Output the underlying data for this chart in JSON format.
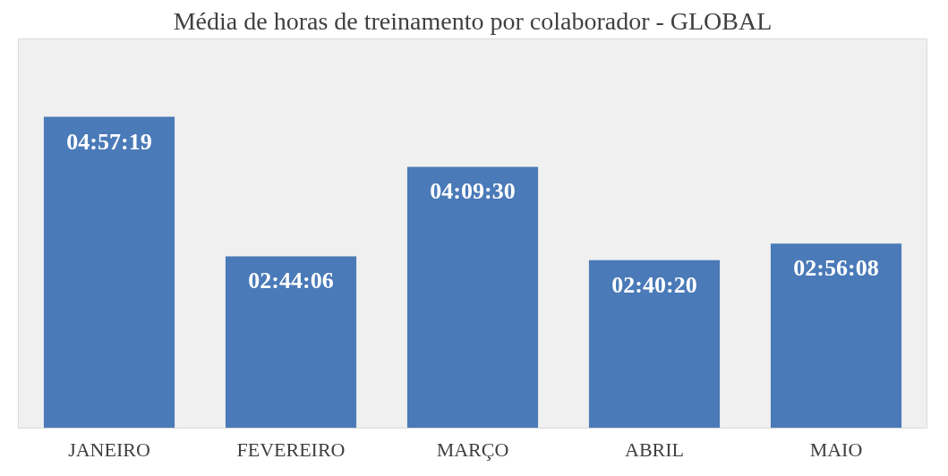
{
  "chart_data": {
    "type": "bar",
    "title": "Média de horas de treinamento por colaborador - GLOBAL",
    "categories": [
      "JANEIRO",
      "FEVEREIRO",
      "MARÇO",
      "ABRIL",
      "MAIO"
    ],
    "values": [
      4.9553,
      2.735,
      4.1583,
      2.6722,
      2.9356
    ],
    "value_labels": [
      "04:57:19",
      "02:44:06",
      "04:09:30",
      "02:40:20",
      "02:56:08"
    ],
    "color": "#4a7ab8",
    "grid": false
  }
}
